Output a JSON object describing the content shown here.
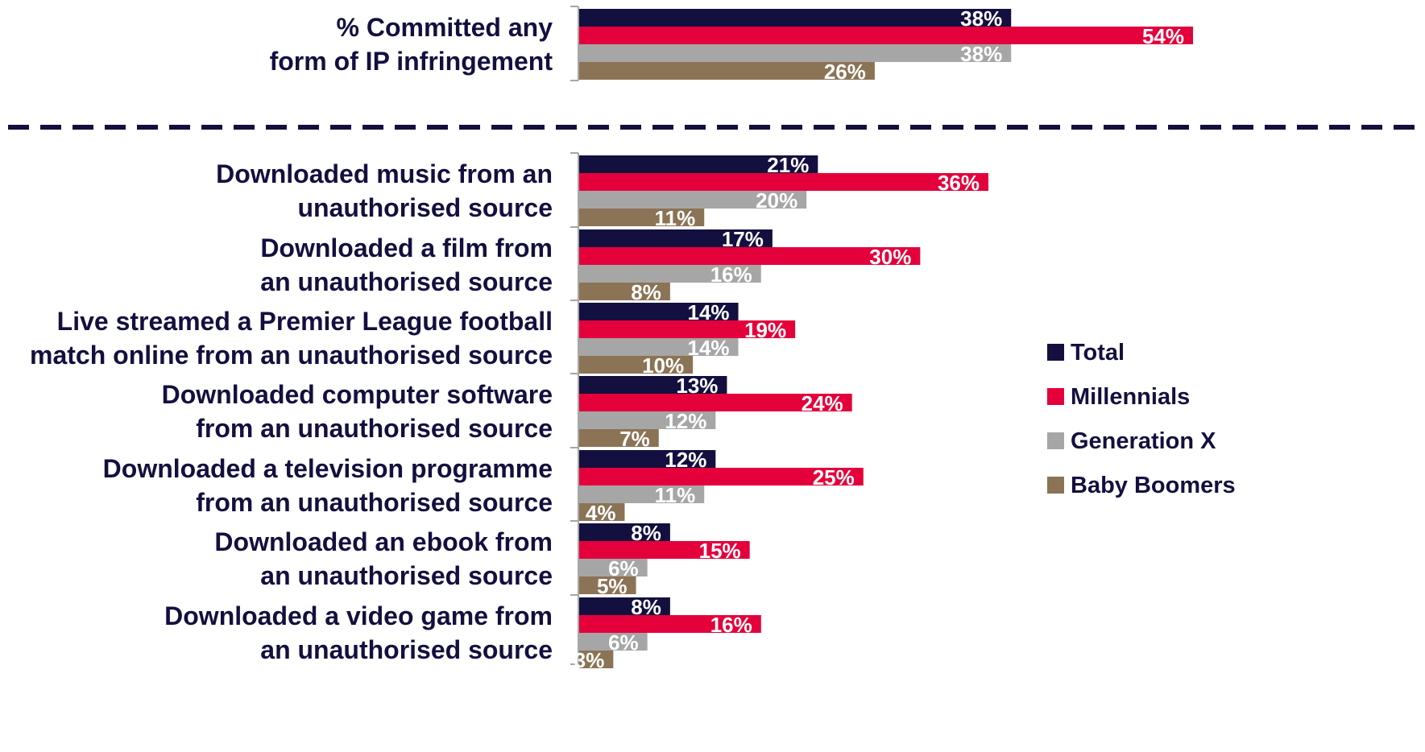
{
  "chart_data": {
    "type": "bar",
    "orientation": "horizontal",
    "xlim": [
      0,
      54
    ],
    "grid": false,
    "legend_position": "right",
    "series": [
      {
        "name": "Total",
        "color": "#13103f",
        "values": [
          38,
          21,
          17,
          14,
          13,
          12,
          8,
          8
        ]
      },
      {
        "name": "Millennials",
        "color": "#e4003b",
        "values": [
          54,
          36,
          30,
          19,
          24,
          25,
          15,
          16
        ]
      },
      {
        "name": "Generation X",
        "color": "#a6a6a6",
        "values": [
          38,
          20,
          16,
          14,
          12,
          11,
          6,
          6
        ]
      },
      {
        "name": "Baby Boomers",
        "color": "#8b7355",
        "values": [
          26,
          11,
          8,
          10,
          7,
          4,
          5,
          3
        ]
      }
    ],
    "categories": [
      {
        "lines": [
          "% Committed any",
          "form of IP infringement"
        ]
      },
      {
        "lines": [
          "Downloaded music from an",
          "unauthorised source"
        ]
      },
      {
        "lines": [
          "Downloaded a film from",
          "an unauthorised source"
        ]
      },
      {
        "lines": [
          "Live streamed a Premier League football",
          "match online from an unauthorised source"
        ]
      },
      {
        "lines": [
          "Downloaded computer software",
          "from an unauthorised source"
        ]
      },
      {
        "lines": [
          "Downloaded a television programme",
          "from an unauthorised source"
        ]
      },
      {
        "lines": [
          "Downloaded an ebook from",
          "an unauthorised source"
        ]
      },
      {
        "lines": [
          "Downloaded a video game from",
          "an unauthorised source"
        ]
      }
    ],
    "value_suffix": "%"
  }
}
